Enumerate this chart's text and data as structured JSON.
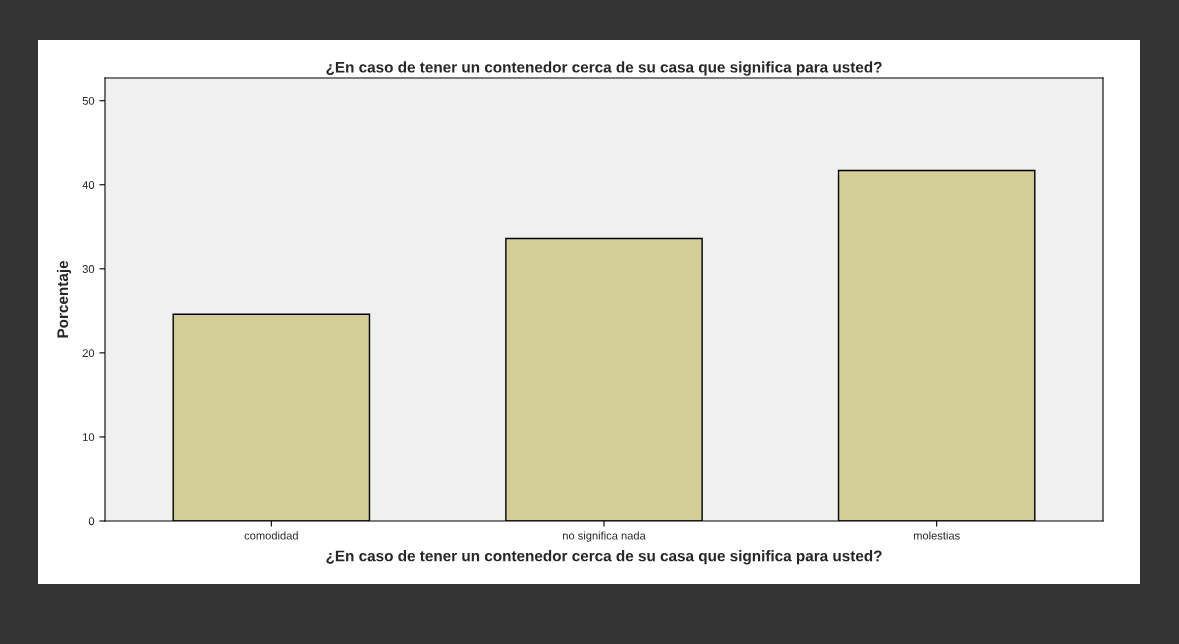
{
  "chart_data": {
    "type": "bar",
    "title": "¿En caso de tener un contenedor cerca de su casa que significa para usted?",
    "xlabel": "¿En caso de tener un contenedor cerca de su casa que significa para usted?",
    "ylabel": "Porcentaje",
    "categories": [
      "comodidad",
      "no significa nada",
      "molestias"
    ],
    "values": [
      24.6,
      33.6,
      41.7
    ],
    "color": "#d3ce98",
    "ylim": [
      0,
      52.7
    ],
    "yticks": [
      0,
      10,
      20,
      30,
      40,
      50
    ]
  }
}
